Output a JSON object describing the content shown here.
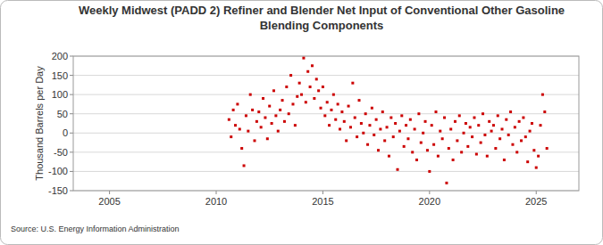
{
  "chart_data": {
    "type": "scatter",
    "title": "Weekly Midwest (PADD 2) Refiner and Blender Net Input of Conventional Other Gasoline Blending Components",
    "y_label": "Thousand Barrels per Day",
    "source": "Source: U.S. Energy Information Administration",
    "color": "#cc0000",
    "marker": "square",
    "grid": true,
    "xlim": [
      2003.3,
      2027.0
    ],
    "xticks": [
      2005,
      2010,
      2015,
      2020,
      2025
    ],
    "ylim": [
      -150,
      200
    ],
    "yticks": [
      -150,
      -100,
      -50,
      0,
      50,
      100,
      150,
      200
    ],
    "x": [
      2010.6,
      2010.7,
      2010.8,
      2010.9,
      2011.0,
      2011.1,
      2011.2,
      2011.3,
      2011.4,
      2011.5,
      2011.6,
      2011.7,
      2011.8,
      2011.9,
      2012.0,
      2012.1,
      2012.2,
      2012.3,
      2012.4,
      2012.5,
      2012.6,
      2012.7,
      2012.8,
      2012.9,
      2013.0,
      2013.1,
      2013.2,
      2013.3,
      2013.4,
      2013.5,
      2013.6,
      2013.7,
      2013.8,
      2013.9,
      2014.0,
      2014.1,
      2014.2,
      2014.3,
      2014.4,
      2014.5,
      2014.6,
      2014.7,
      2014.8,
      2014.9,
      2015.0,
      2015.1,
      2015.2,
      2015.3,
      2015.4,
      2015.5,
      2015.6,
      2015.7,
      2015.8,
      2015.9,
      2016.0,
      2016.1,
      2016.2,
      2016.3,
      2016.4,
      2016.5,
      2016.6,
      2016.7,
      2016.8,
      2016.9,
      2017.0,
      2017.1,
      2017.2,
      2017.3,
      2017.4,
      2017.5,
      2017.6,
      2017.7,
      2017.8,
      2017.9,
      2018.0,
      2018.1,
      2018.2,
      2018.3,
      2018.4,
      2018.5,
      2018.6,
      2018.7,
      2018.8,
      2018.9,
      2019.0,
      2019.1,
      2019.2,
      2019.3,
      2019.4,
      2019.5,
      2019.6,
      2019.7,
      2019.8,
      2019.9,
      2020.0,
      2020.1,
      2020.2,
      2020.3,
      2020.4,
      2020.5,
      2020.6,
      2020.7,
      2020.8,
      2020.9,
      2021.0,
      2021.1,
      2021.2,
      2021.3,
      2021.4,
      2021.5,
      2021.6,
      2021.7,
      2021.8,
      2021.9,
      2022.0,
      2022.1,
      2022.2,
      2022.3,
      2022.4,
      2022.5,
      2022.6,
      2022.7,
      2022.8,
      2022.9,
      2023.0,
      2023.1,
      2023.2,
      2023.3,
      2023.4,
      2023.5,
      2023.6,
      2023.7,
      2023.8,
      2023.9,
      2024.0,
      2024.1,
      2024.2,
      2024.3,
      2024.4,
      2024.5,
      2024.6,
      2024.7,
      2024.8,
      2024.9,
      2025.0,
      2025.1,
      2025.2,
      2025.3,
      2025.4,
      2025.5
    ],
    "values": [
      35,
      -10,
      60,
      20,
      75,
      10,
      -40,
      -85,
      45,
      5,
      100,
      60,
      -20,
      30,
      55,
      15,
      90,
      40,
      -15,
      70,
      25,
      110,
      45,
      5,
      60,
      85,
      30,
      120,
      50,
      150,
      75,
      20,
      95,
      130,
      100,
      195,
      80,
      160,
      120,
      175,
      90,
      140,
      110,
      65,
      120,
      45,
      80,
      20,
      60,
      100,
      35,
      75,
      10,
      55,
      30,
      -20,
      70,
      15,
      130,
      40,
      -10,
      85,
      25,
      0,
      50,
      -30,
      20,
      65,
      -5,
      35,
      -45,
      10,
      55,
      -20,
      15,
      -60,
      40,
      -10,
      25,
      -95,
      5,
      45,
      -35,
      20,
      -15,
      35,
      -50,
      10,
      -70,
      50,
      -25,
      0,
      30,
      -45,
      -100,
      20,
      -30,
      55,
      -60,
      5,
      -15,
      40,
      -130,
      -40,
      10,
      -70,
      30,
      -20,
      45,
      -50,
      0,
      25,
      -35,
      15,
      -10,
      40,
      -55,
      20,
      -25,
      50,
      -5,
      -60,
      30,
      5,
      20,
      -40,
      45,
      -15,
      10,
      -70,
      35,
      -5,
      55,
      -30,
      15,
      -50,
      30,
      -20,
      40,
      -10,
      -75,
      5,
      25,
      -45,
      -90,
      -60,
      20,
      100,
      55,
      -40
    ]
  }
}
